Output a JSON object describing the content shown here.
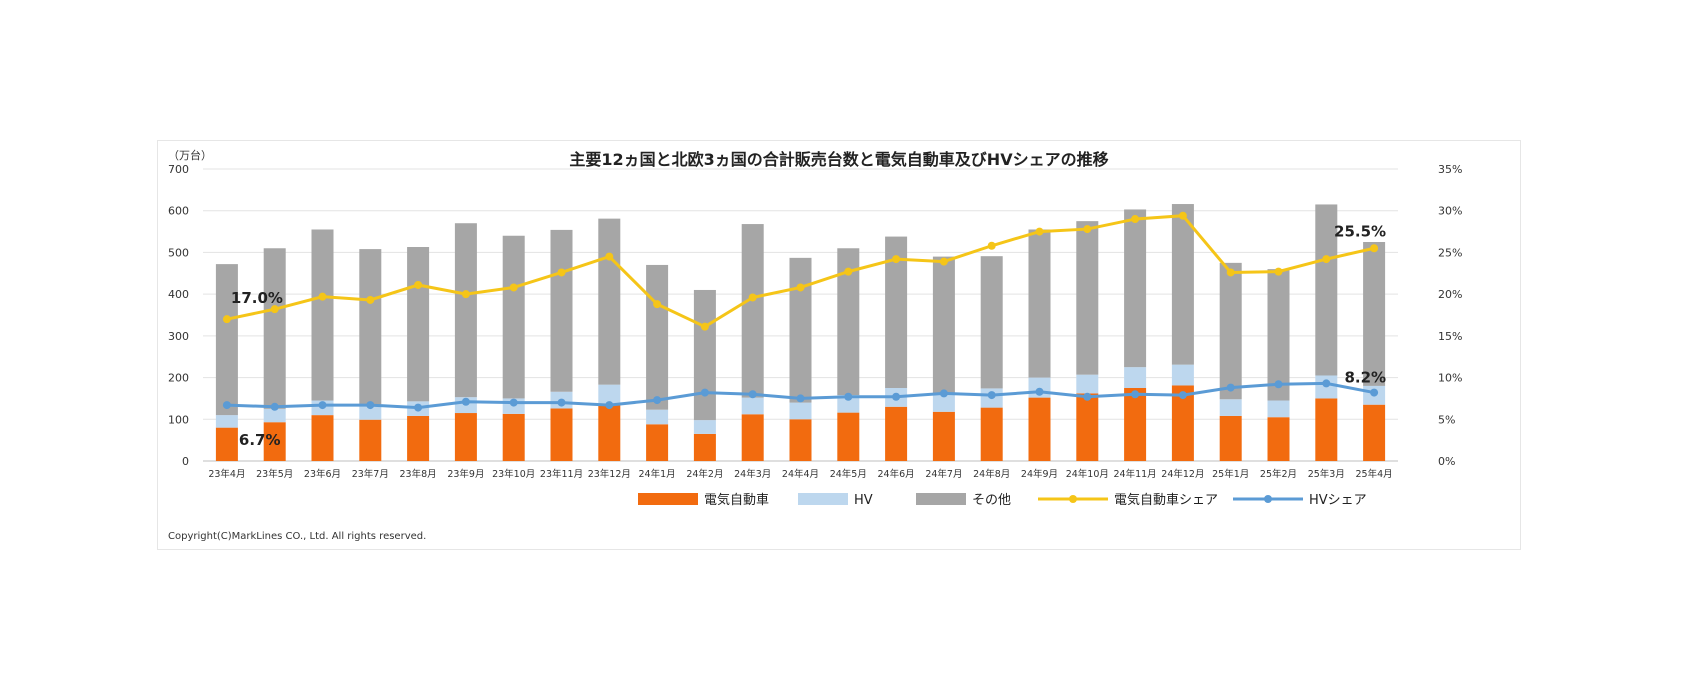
{
  "chart_data": {
    "type": "bar",
    "title": "主要12ヵ国と北欧3ヵ国の合計販売台数と電気自動車及びHVシェアの推移",
    "y_left_unit": "（万台）",
    "ylim_left": [
      0,
      700
    ],
    "ylim_right": [
      0,
      35
    ],
    "left_ticks": [
      "0",
      "100",
      "200",
      "300",
      "400",
      "500",
      "600",
      "700"
    ],
    "right_ticks": [
      "0%",
      "5%",
      "10%",
      "15%",
      "20%",
      "25%",
      "30%",
      "35%"
    ],
    "categories": [
      "23年4月",
      "23年5月",
      "23年6月",
      "23年7月",
      "23年8月",
      "23年9月",
      "23年10月",
      "23年11月",
      "23年12月",
      "24年1月",
      "24年2月",
      "24年3月",
      "24年4月",
      "24年5月",
      "24年6月",
      "24年7月",
      "24年8月",
      "24年9月",
      "24年10月",
      "24年11月",
      "24年12月",
      "25年1月",
      "25年2月",
      "25年3月",
      "25年4月"
    ],
    "stack_series": [
      {
        "name": "電気自動車",
        "color": "#f26b0f",
        "values": [
          80,
          93,
          110,
          99,
          108,
          115,
          113,
          126,
          135,
          88,
          65,
          112,
          100,
          116,
          130,
          118,
          128,
          152,
          162,
          175,
          181,
          108,
          105,
          150,
          135
        ]
      },
      {
        "name": "HV",
        "color": "#bdd7ee",
        "values": [
          30,
          32,
          35,
          33,
          35,
          38,
          37,
          40,
          48,
          35,
          33,
          40,
          40,
          42,
          45,
          44,
          46,
          48,
          45,
          50,
          50,
          40,
          40,
          55,
          45
        ]
      },
      {
        "name": "その他",
        "color": "#a6a6a6",
        "values": [
          362,
          385,
          410,
          376,
          370,
          417,
          390,
          388,
          398,
          347,
          312,
          416,
          347,
          352,
          363,
          328,
          317,
          355,
          368,
          378,
          385,
          327,
          315,
          410,
          345
        ]
      }
    ],
    "line_series": [
      {
        "name": "電気自動車シェア",
        "color": "#f5c518",
        "values": [
          17.0,
          18.2,
          19.7,
          19.3,
          21.1,
          20.0,
          20.8,
          22.6,
          24.5,
          18.8,
          16.1,
          19.6,
          20.8,
          22.7,
          24.2,
          23.9,
          25.8,
          27.5,
          27.8,
          29.0,
          29.4,
          22.6,
          22.7,
          24.2,
          25.5
        ]
      },
      {
        "name": "HVシェア",
        "color": "#5b9bd5",
        "values": [
          6.7,
          6.5,
          6.7,
          6.7,
          6.4,
          7.1,
          7.0,
          7.0,
          6.7,
          7.3,
          8.2,
          8.0,
          7.5,
          7.7,
          7.7,
          8.1,
          7.9,
          8.3,
          7.7,
          8.0,
          7.9,
          8.8,
          9.2,
          9.3,
          8.2
        ]
      }
    ],
    "annotations": {
      "ev_first": "17.0%",
      "hv_first": "6.7%",
      "ev_last": "25.5%",
      "hv_last": "8.2%"
    },
    "legend_position": "bottom"
  },
  "copyright": "Copyright(C)MarkLines CO., Ltd. All rights reserved."
}
